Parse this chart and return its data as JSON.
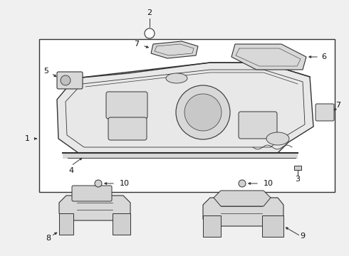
{
  "bg_color": "#f0f0f0",
  "box_color": "#f0f0f0",
  "line_color": "#333333",
  "label_color": "#111111",
  "fig_width": 4.9,
  "fig_height": 3.6,
  "dpi": 100
}
